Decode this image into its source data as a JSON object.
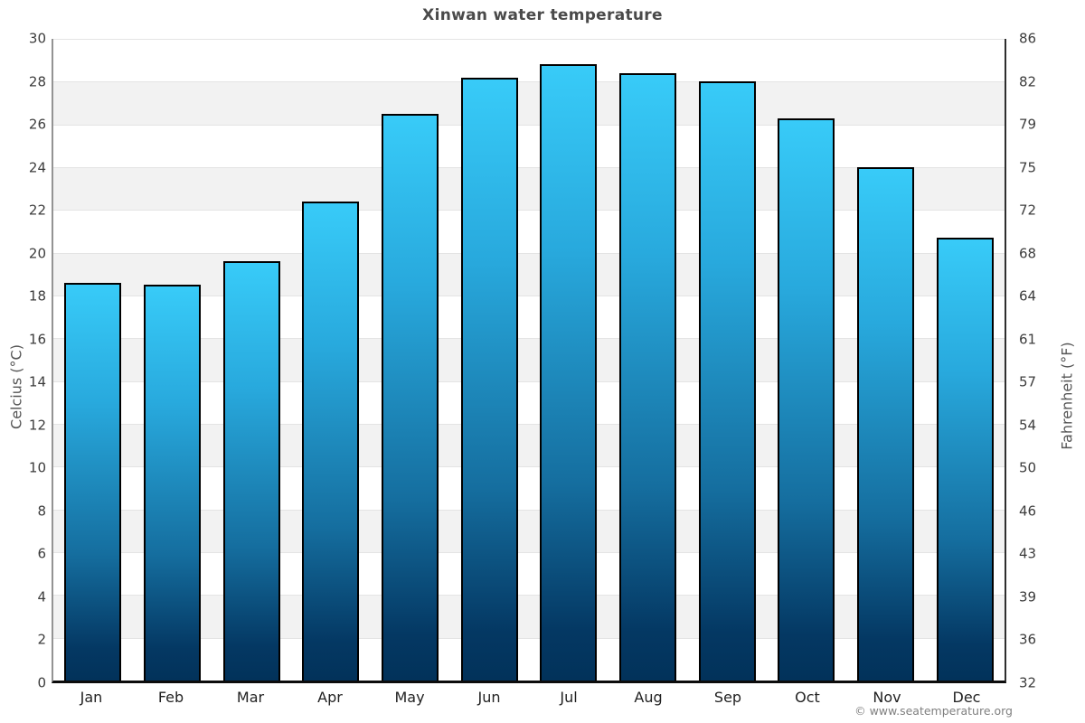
{
  "chart_data": {
    "type": "bar",
    "title": "Xinwan water temperature",
    "categories": [
      "Jan",
      "Feb",
      "Mar",
      "Apr",
      "May",
      "Jun",
      "Jul",
      "Aug",
      "Sep",
      "Oct",
      "Nov",
      "Dec"
    ],
    "values": [
      18.6,
      18.5,
      19.6,
      22.4,
      26.5,
      28.2,
      28.8,
      28.4,
      28.0,
      26.3,
      24.0,
      20.7
    ],
    "unit": "°C",
    "xlabel": "",
    "ylabel_left": "Celcius (°C)",
    "ylabel_right": "Fahrenheit (°F)",
    "ylim": [
      0,
      30
    ],
    "ytick_step_celsius": 2,
    "yticks_left": [
      "30",
      "28",
      "26",
      "24",
      "22",
      "20",
      "18",
      "16",
      "14",
      "12",
      "10",
      "8",
      "6",
      "4",
      "2",
      "0"
    ],
    "yticks_right": [
      "86",
      "82",
      "79",
      "75",
      "72",
      "68",
      "64",
      "61",
      "57",
      "54",
      "50",
      "46",
      "43",
      "39",
      "36",
      "32"
    ],
    "legend": "none",
    "grid": "alternating horizontal bands, light gridline each 2°C",
    "colors": {
      "bar_top": "#35c8f7",
      "bar_bottom": "#02325a",
      "bar_border": "#000000",
      "band_shade": "#f2f2f2",
      "gridline": "#e4e4e4",
      "title_text": "#4a4a4a"
    },
    "copyright": "© www.seatemperature.org"
  }
}
